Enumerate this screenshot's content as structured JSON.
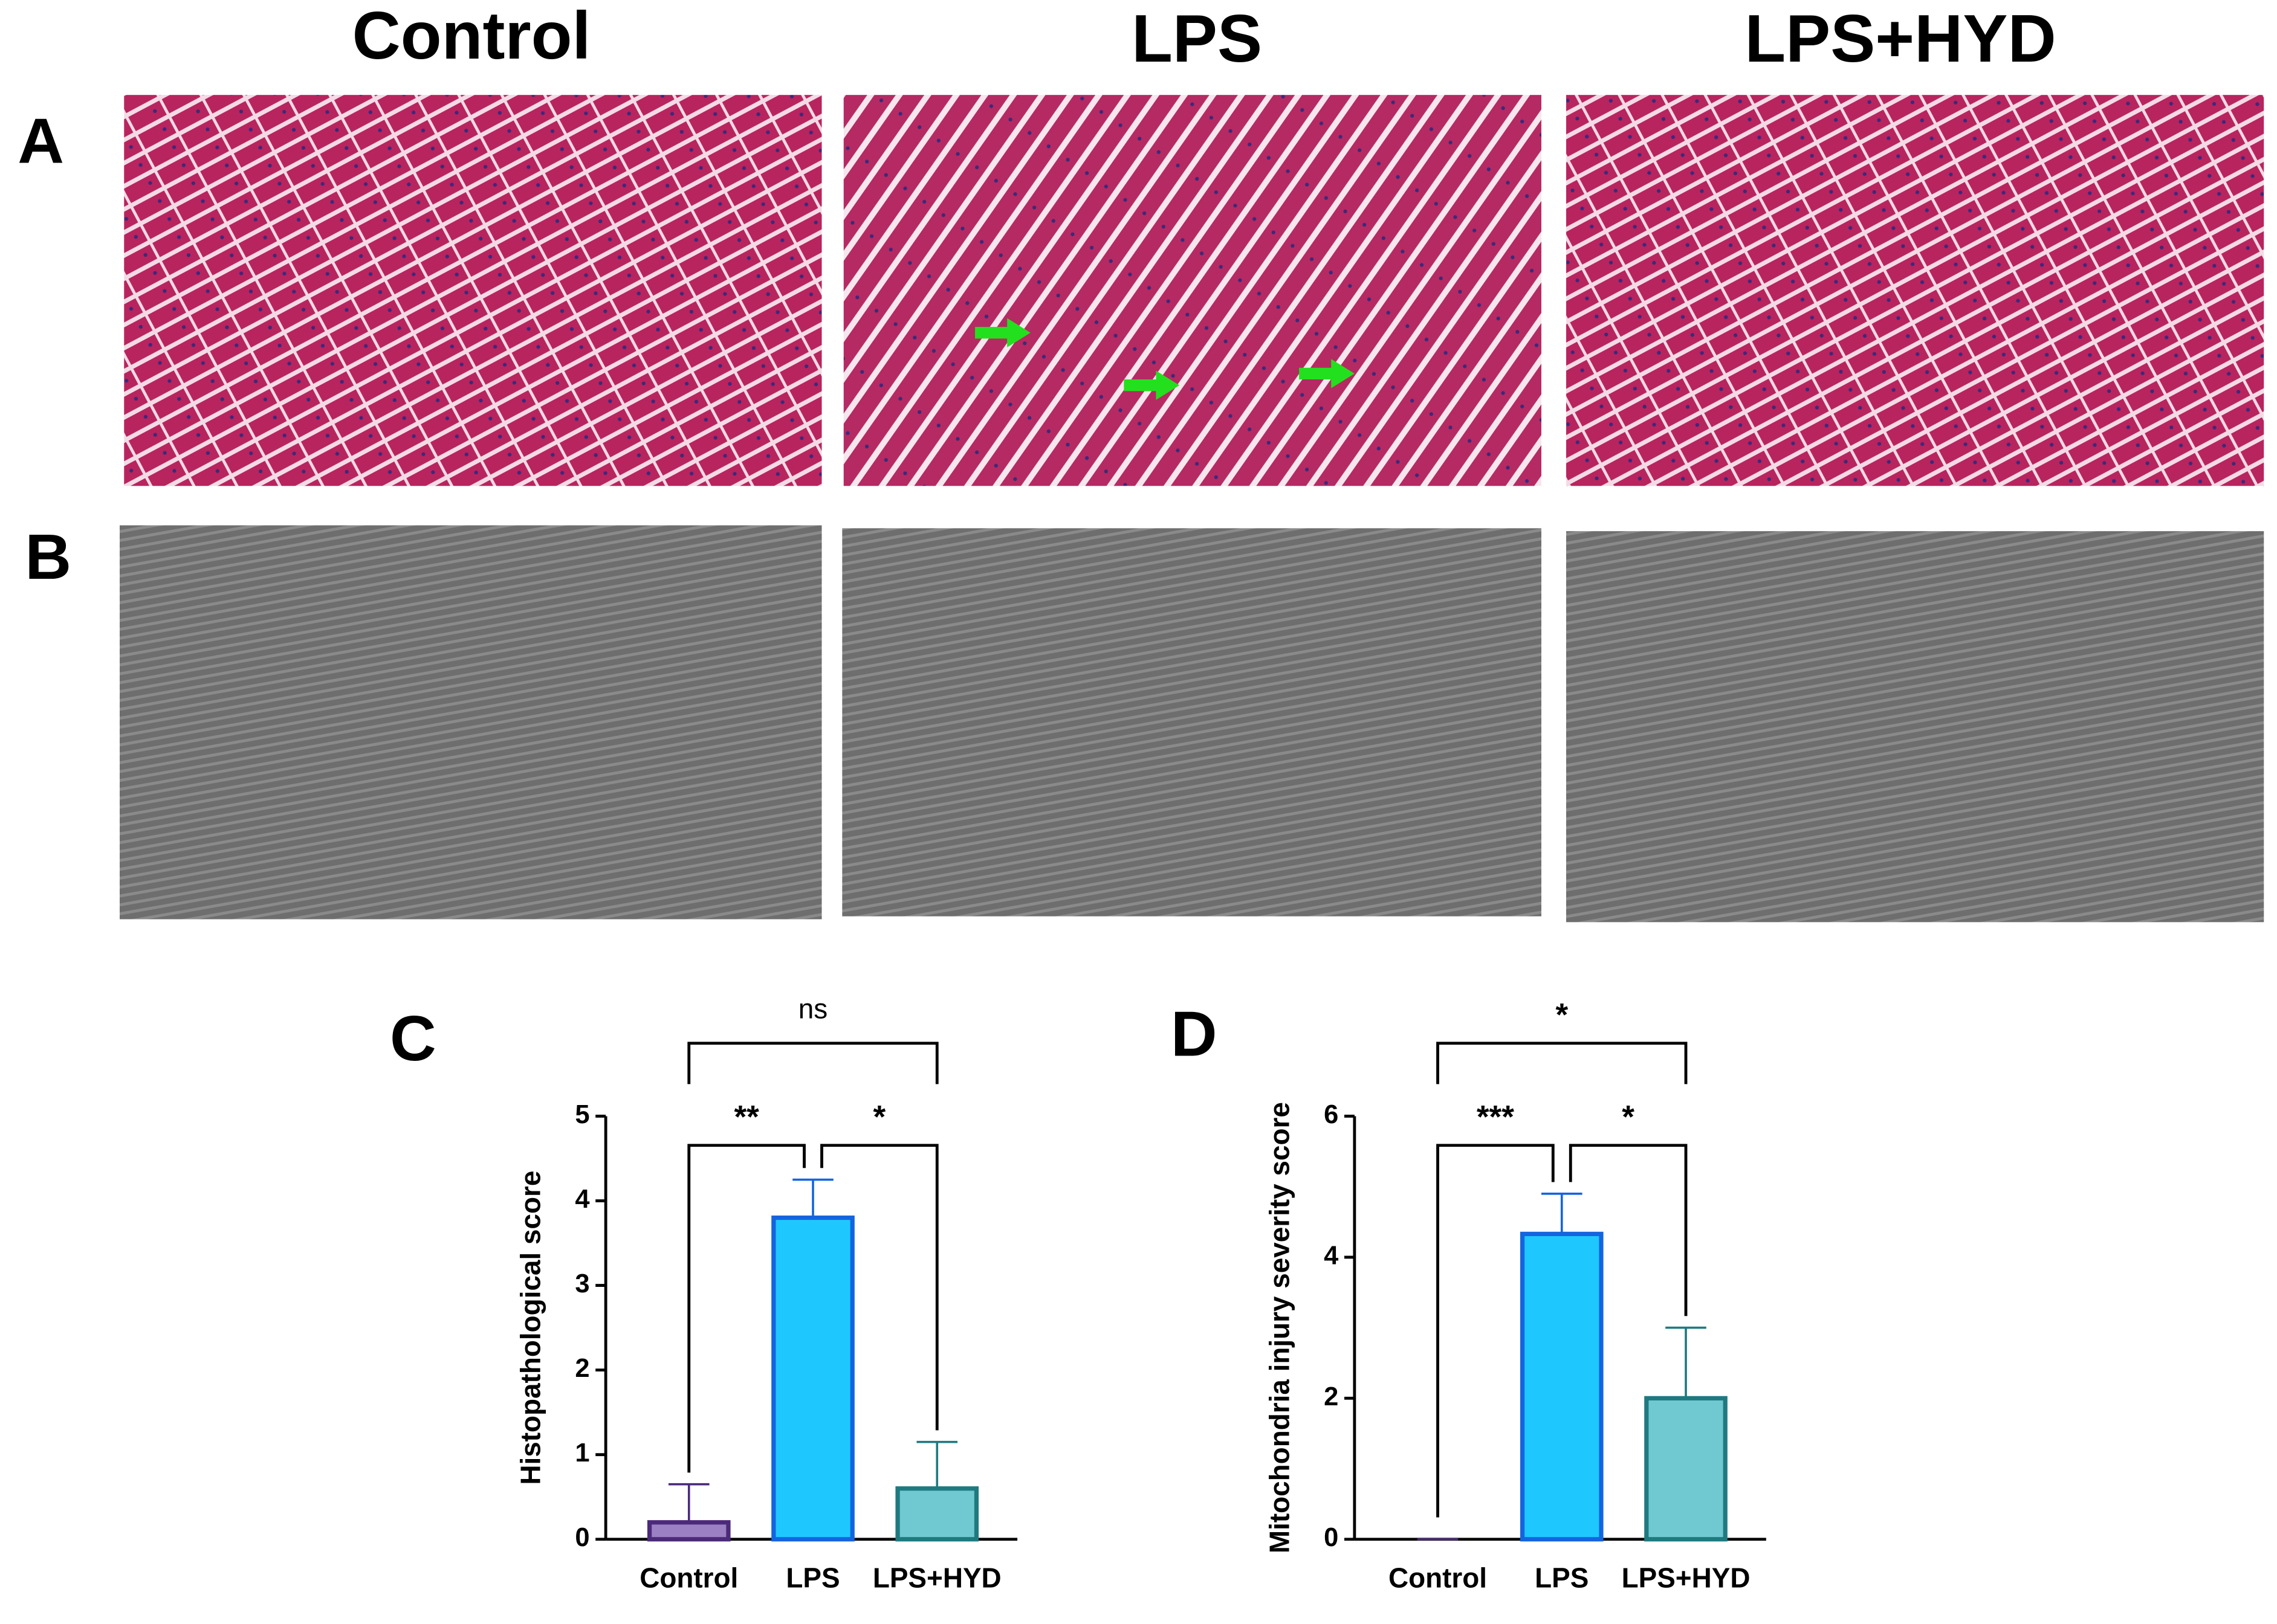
{
  "figure": {
    "columns": [
      "Control",
      "LPS",
      "LPS+HYD"
    ],
    "panel_labels": [
      "A",
      "B"
    ]
  },
  "chart_data": [
    {
      "type": "bar",
      "panel_label": "C",
      "y_label": "Histopathological score",
      "categories": [
        "Control",
        "LPS",
        "LPS+HYD"
      ],
      "values": [
        0.2,
        3.8,
        0.6
      ],
      "errors": [
        0.45,
        0.45,
        0.55
      ],
      "colors": [
        "#9b80c4",
        "#1ec8ff",
        "#70c8d0"
      ],
      "edge_colors": [
        "#4b2a7a",
        "#1464e0",
        "#1f7a80"
      ],
      "ylim": [
        0,
        5
      ],
      "yticks": [
        0,
        1,
        2,
        3,
        4,
        5
      ],
      "comparisons": [
        {
          "label": "**",
          "groups": [
            0,
            1
          ]
        },
        {
          "label": "*",
          "groups": [
            1,
            2
          ]
        },
        {
          "label": "ns",
          "groups": [
            0,
            2
          ]
        }
      ]
    },
    {
      "type": "bar",
      "panel_label": "D",
      "y_label": "Mitochondria injury severity score",
      "categories": [
        "Control",
        "LPS",
        "LPS+HYD"
      ],
      "values": [
        0,
        4.33,
        2
      ],
      "errors": [
        0,
        0.57,
        1
      ],
      "colors": [
        "#9b80c4",
        "#1ec8ff",
        "#70c8d0"
      ],
      "edge_colors": [
        "#4b2a7a",
        "#1464e0",
        "#1f7a80"
      ],
      "ylim": [
        0,
        6
      ],
      "yticks": [
        0,
        2,
        4,
        6
      ],
      "comparisons": [
        {
          "label": "***",
          "groups": [
            0,
            1
          ]
        },
        {
          "label": "*",
          "groups": [
            1,
            2
          ]
        },
        {
          "label": "*",
          "groups": [
            0,
            2
          ]
        }
      ]
    }
  ]
}
